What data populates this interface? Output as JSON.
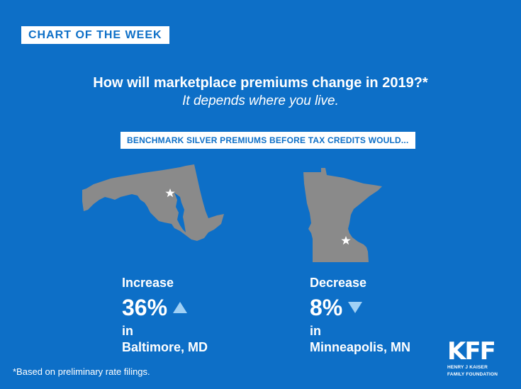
{
  "tag": "CHART OF THE WEEK",
  "question": "How will marketplace premiums change in 2019?*",
  "subtitle": "It depends where you live.",
  "benchmark_label": "BENCHMARK SILVER PREMIUMS BEFORE TAX CREDITS WOULD...",
  "colors": {
    "background": "#0d6fc7",
    "map": "#8a8a8a",
    "arrow": "#9fd0f5"
  },
  "results": [
    {
      "direction": "Increase",
      "percent": "36%",
      "arrow_icon": "up-triangle-icon",
      "in": "in",
      "place": "Baltimore, MD"
    },
    {
      "direction": "Decrease",
      "percent": "8%",
      "arrow_icon": "down-triangle-icon",
      "in": "in",
      "place": "Minneapolis, MN"
    }
  ],
  "footnote": "*Based on preliminary rate filings.",
  "logo": {
    "mark": "KFF",
    "line1": "HENRY J KAISER",
    "line2": "FAMILY FOUNDATION"
  }
}
